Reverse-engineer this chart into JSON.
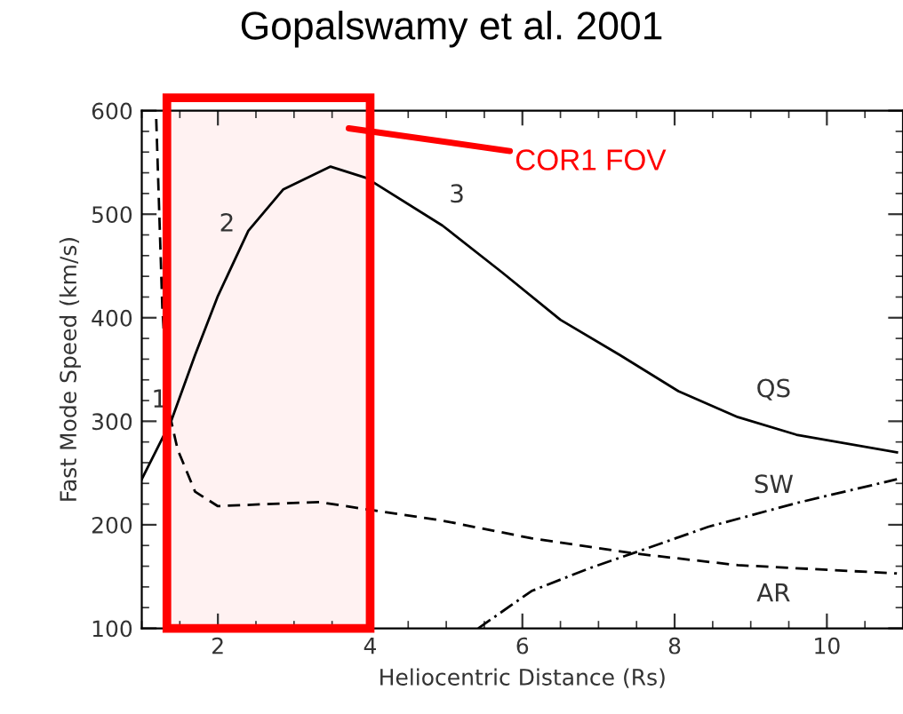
{
  "chart_data": {
    "type": "line",
    "title": "Gopalswamy et al. 2001",
    "xlabel": "Heliocentric Distance (Rs)",
    "ylabel": "Fast Mode Speed (km/s)",
    "xlim": [
      1,
      11
    ],
    "ylim": [
      100,
      600
    ],
    "xticks": [
      2,
      4,
      6,
      8,
      10
    ],
    "yticks": [
      100,
      200,
      300,
      400,
      500,
      600
    ],
    "grid": false,
    "legend": false,
    "marker": "none",
    "series": [
      {
        "name": "QS",
        "color": "#000000",
        "line_style": "solid",
        "x": [
          1.0,
          1.39,
          1.7,
          2.0,
          2.4,
          2.86,
          3.48,
          3.95,
          4.95,
          5.73,
          6.5,
          7.28,
          8.05,
          8.83,
          9.6,
          10.92
        ],
        "values": [
          244,
          301,
          364,
          421,
          484,
          524,
          546,
          535,
          489,
          444,
          398,
          364,
          329,
          304,
          287,
          270
        ]
      },
      {
        "name": "AR",
        "color": "#000000",
        "line_style": "dashed",
        "x": [
          1.19,
          1.27,
          1.35,
          1.47,
          1.7,
          2.0,
          2.63,
          3.33,
          3.95,
          4.95,
          6.12,
          7.51,
          8.83,
          10.92
        ],
        "values": [
          592,
          410,
          312,
          273,
          232,
          218,
          220,
          222,
          215,
          204,
          187,
          172,
          161,
          153
        ]
      },
      {
        "name": "SW",
        "color": "#000000",
        "line_style": "dashdot",
        "x": [
          5.42,
          6.12,
          6.88,
          7.51,
          8.44,
          9.6,
          10.92
        ],
        "values": [
          100,
          136,
          158,
          174,
          198,
          221,
          244
        ]
      }
    ],
    "annotations": [
      "1",
      "2",
      "3",
      "COR1 FOV"
    ],
    "bands": [
      {
        "axis": "x",
        "from": 1.33,
        "to": 4.0,
        "color": "#ff0000"
      }
    ]
  }
}
